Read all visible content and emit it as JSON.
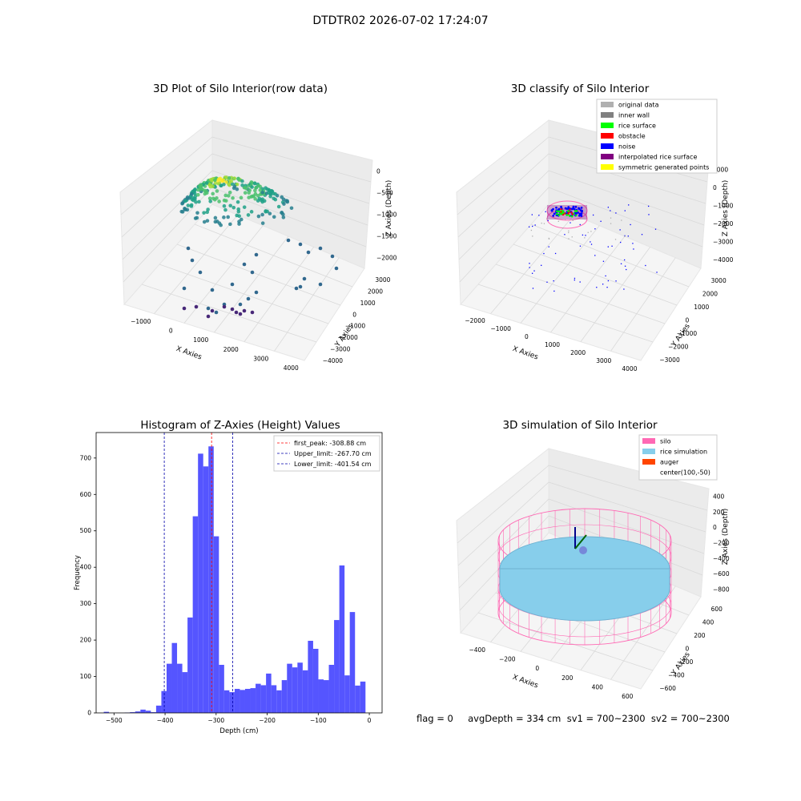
{
  "suptitle": "DTDTR02 2026-07-02 17:24:07",
  "status_line": "flag = 0     avgDepth = 334 cm  sv1 = 700~2300  sv2 = 700~2300",
  "panels": {
    "raw": {
      "title": "3D Plot of Silo Interior(row data)",
      "xlabel": "X Axies",
      "ylabel": "Y Axies",
      "zlabel": "Z Axies (Depth)",
      "xticks": [
        "−1000",
        "0",
        "1000",
        "2000",
        "3000",
        "4000"
      ],
      "yticks": [
        "−4000",
        "−3000",
        "−2000",
        "−1000",
        "0",
        "1000",
        "2000",
        "3000"
      ],
      "zticks": [
        "−2000",
        "−1500",
        "−1000",
        "−500",
        "0"
      ]
    },
    "classify": {
      "title": "3D classify of Silo Interior",
      "xlabel": "X Axies",
      "ylabel": "Y Axies",
      "zlabel": "Z Axies (Depth)",
      "xticks": [
        "−2000",
        "−1000",
        "0",
        "1000",
        "2000",
        "3000",
        "4000"
      ],
      "yticks": [
        "−3000",
        "−2000",
        "−1000",
        "0",
        "1000",
        "2000",
        "3000"
      ],
      "zticks": [
        "−4000",
        "−3000",
        "−2000",
        "−1000",
        "0",
        "1000"
      ],
      "legend": [
        {
          "label": "original data",
          "color": "#b0b0b0"
        },
        {
          "label": "inner wall",
          "color": "#808080"
        },
        {
          "label": "rice surface",
          "color": "#00ff00"
        },
        {
          "label": "obstacle",
          "color": "#ff0000"
        },
        {
          "label": "noise",
          "color": "#0000ff"
        },
        {
          "label": "interpolated rice surface",
          "color": "#800080"
        },
        {
          "label": "symmetric generated points",
          "color": "#ffff00"
        }
      ]
    },
    "simulation": {
      "title": "3D simulation of Silo Interior",
      "xlabel": "X Axies",
      "ylabel": "Y Axies",
      "zlabel": "Z Axies (Depth)",
      "xticks": [
        "−400",
        "−200",
        "0",
        "200",
        "400",
        "600"
      ],
      "yticks": [
        "−600",
        "−400",
        "−200",
        "0",
        "200",
        "400",
        "600"
      ],
      "zticks": [
        "−800",
        "−600",
        "−400",
        "−200",
        "0",
        "200",
        "400"
      ],
      "legend": [
        {
          "label": "silo",
          "color": "#ff69b4"
        },
        {
          "label": "rice simulation",
          "color": "#87ceeb"
        },
        {
          "label": "auger",
          "color": "#ff4500"
        },
        {
          "label": "center(100,-50)",
          "color": ""
        }
      ]
    }
  },
  "chart_data": {
    "type": "bar",
    "title": "Histogram of Z-Axies (Height) Values",
    "xlabel": "Depth (cm)",
    "ylabel": "Frequency",
    "xlim": [
      -535,
      25
    ],
    "ylim": [
      0,
      770
    ],
    "xticks": [
      -500,
      -400,
      -300,
      -200,
      -100,
      0
    ],
    "yticks": [
      0,
      100,
      200,
      300,
      400,
      500,
      600,
      700
    ],
    "bin_width": 10.25,
    "bin_start": -520,
    "values": [
      3,
      0,
      0,
      0,
      1,
      2,
      4,
      9,
      6,
      2,
      20,
      60,
      135,
      192,
      135,
      112,
      262,
      540,
      712,
      677,
      732,
      485,
      132,
      62,
      57,
      66,
      63,
      66,
      68,
      80,
      76,
      108,
      76,
      62,
      90,
      135,
      125,
      138,
      117,
      198,
      176,
      92,
      90,
      132,
      255,
      405,
      103,
      277,
      75,
      86
    ],
    "color": "#4c4cff",
    "markers": [
      {
        "label": "first_peak: -308.88 cm",
        "value": -308.88,
        "color": "#ff0000"
      },
      {
        "label": "Upper_limit: -267.70 cm",
        "value": -267.7,
        "color": "#0000aa"
      },
      {
        "label": "Lower_limit: -401.54 cm",
        "value": -401.54,
        "color": "#0000aa"
      }
    ],
    "legend_position": "top-right"
  }
}
